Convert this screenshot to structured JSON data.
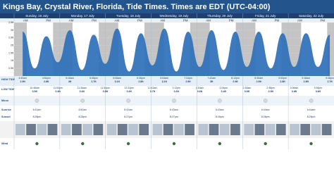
{
  "chart_data": {
    "type": "tide",
    "title": "Kings Bay, Crystal River, Florida, Tide Times. Times are EDT (UTC-04:00)",
    "days": [
      "Sunday, 16 July",
      "Monday, 17 July",
      "Tuesday, 18 July",
      "Wednesday, 19 July",
      "Thursday, 20 July",
      "Friday, 21 July",
      "Saturday, 22 July"
    ],
    "periods": [
      "AM",
      "PM"
    ],
    "xlim": [
      0,
      168
    ],
    "ylim": [
      0,
      3.5
    ],
    "yticks": [
      {
        "value": 0.5,
        "label": "0.5ft"
      },
      {
        "value": 1,
        "label": "1ft"
      },
      {
        "value": 1.5,
        "label": "1.5ft"
      },
      {
        "value": 2,
        "label": "2ft"
      },
      {
        "value": 2.5,
        "label": "2.5ft"
      },
      {
        "value": 3,
        "label": "3ft"
      },
      {
        "value": 3.5,
        "label": "3.5ft"
      }
    ],
    "series": [
      {
        "name": "Tide",
        "color": "#2e70b8",
        "x": [
          4.5,
          10.8,
          16.9,
          23.0,
          29.3,
          35.6,
          41.8,
          47.9,
          54.1,
          60.4,
          66.6,
          72.7,
          78.9,
          85.2,
          91.4,
          97.5,
          103.7,
          110.0,
          116.2,
          122.3,
          128.5,
          134.8,
          141.0,
          147.1,
          153.3,
          159.6,
          165.8
        ],
        "values": [
          2.9,
          0.5,
          2.6,
          0.9,
          3.0,
          0.4,
          2.7,
          0.8,
          3.1,
          0.3,
          2.8,
          0.7,
          3.1,
          0.3,
          2.9,
          0.6,
          3.0,
          0.4,
          2.9,
          0.6,
          2.9,
          0.5,
          2.8,
          0.6,
          2.8,
          0.6,
          2.7
        ],
        "value_labels": [
          "2.9ft",
          "0.5ft",
          "2.6ft",
          "0.9ft",
          "3ft",
          "0.4ft",
          "2.7ft",
          "0.8ft",
          "3.1ft",
          "0.3ft",
          "2.8ft",
          "0.7ft",
          "3.1ft",
          "0.3ft",
          "2.9ft",
          "0.6ft",
          "3ft",
          "0.4ft",
          "2.9ft",
          "0.6ft",
          "2.9ft",
          "0.5ft",
          "2.8ft",
          "0.6ft",
          "2.8ft",
          "0.6ft",
          "2.7ft"
        ],
        "times": [
          "4:30am",
          "10:48am",
          "4:54pm",
          "11:00pm",
          "5:18am",
          "11:36am",
          "5:48pm",
          "11:54pm",
          "6:06am",
          "12:24pm",
          "6:36pm",
          "12:42am",
          "6:54am",
          "1:12pm",
          "7:24pm",
          "1:30am",
          "7:42am",
          "2:00pm",
          "8:12pm",
          "2:18am",
          "8:30am",
          "2:48pm",
          "9:00pm",
          "3:06am",
          "9:18am",
          "3:36pm",
          "9:48pm"
        ]
      }
    ],
    "row_labels": {
      "high": "HIGH TIDE",
      "low": "LOW TIDE",
      "moon": "Moon",
      "sunrise": "Sunrise",
      "sunset": "Sunset",
      "wind": "Wind"
    },
    "sunrise": [
      "6:41am",
      "6:42am",
      "6:42am",
      "6:43am",
      "6:43am",
      "6:44am",
      "6:44am"
    ],
    "sunset": [
      "8:28pm",
      "8:28pm",
      "8:27pm",
      "8:27pm",
      "8:26pm",
      "8:26pm",
      "8:25pm"
    ]
  }
}
